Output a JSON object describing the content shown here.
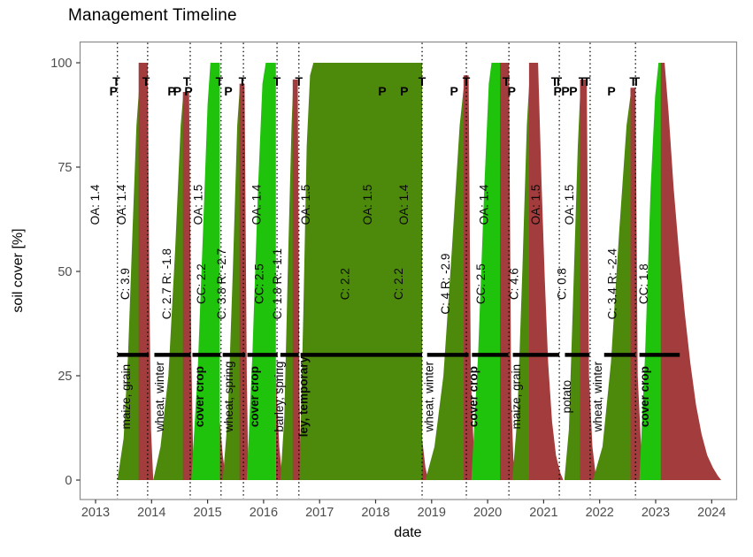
{
  "chart_data": {
    "type": "area",
    "title": "Management Timeline",
    "xlabel": "date",
    "ylabel": "soil cover [%]",
    "x_ticks": [
      2013,
      2014,
      2015,
      2016,
      2017,
      2018,
      2019,
      2020,
      2021,
      2022,
      2023,
      2024
    ],
    "y_ticks": [
      0,
      25,
      50,
      75,
      100
    ],
    "xlim": [
      2012.72,
      2024.45
    ],
    "ylim": [
      0,
      100
    ],
    "grid": "off",
    "legend": "none",
    "colors": {
      "crop": "#4d8a0c",
      "cover": "#1fc30b",
      "residue": "#a33c3c",
      "threshold": "#000000",
      "event_line": "#000000",
      "tick_label": "#4d4d4d",
      "panel_border": "#8c8c8c"
    },
    "threshold": {
      "value": 30
    },
    "threshold_segments": [
      [
        2013.39,
        2013.95
      ],
      [
        2014.05,
        2014.69
      ],
      [
        2014.73,
        2015.23
      ],
      [
        2015.27,
        2015.67
      ],
      [
        2015.71,
        2016.25
      ],
      [
        2016.3,
        2016.62
      ],
      [
        2016.66,
        2018.83
      ],
      [
        2018.92,
        2019.66
      ],
      [
        2019.72,
        2020.37
      ],
      [
        2020.45,
        2021.28
      ],
      [
        2021.38,
        2021.82
      ],
      [
        2022.08,
        2022.64
      ],
      [
        2022.71,
        2023.43
      ]
    ],
    "event_lines_x": [
      2013.39,
      2013.93,
      2014.69,
      2015.24,
      2015.64,
      2016.24,
      2016.63,
      2018.83,
      2019.62,
      2020.38,
      2021.28,
      2021.83,
      2022.64
    ],
    "marker_rows": {
      "T": 94.5,
      "P": 92.2
    },
    "markers": [
      {
        "x": 2013.32,
        "t": "P"
      },
      {
        "x": 2013.37,
        "t": "T"
      },
      {
        "x": 2013.9,
        "t": "T"
      },
      {
        "x": 2014.36,
        "t": "P"
      },
      {
        "x": 2014.46,
        "t": "P"
      },
      {
        "x": 2014.63,
        "t": "T"
      },
      {
        "x": 2014.66,
        "t": "P"
      },
      {
        "x": 2015.21,
        "t": "T"
      },
      {
        "x": 2015.37,
        "t": "P"
      },
      {
        "x": 2015.62,
        "t": "T"
      },
      {
        "x": 2016.24,
        "t": "T"
      },
      {
        "x": 2016.63,
        "t": "T"
      },
      {
        "x": 2018.12,
        "t": "P"
      },
      {
        "x": 2018.51,
        "t": "P"
      },
      {
        "x": 2018.83,
        "t": "T"
      },
      {
        "x": 2019.4,
        "t": "P"
      },
      {
        "x": 2019.62,
        "t": "T"
      },
      {
        "x": 2020.33,
        "t": "T"
      },
      {
        "x": 2020.43,
        "t": "P"
      },
      {
        "x": 2021.2,
        "t": "T"
      },
      {
        "x": 2021.26,
        "t": "T"
      },
      {
        "x": 2021.25,
        "t": "P"
      },
      {
        "x": 2021.39,
        "t": "P"
      },
      {
        "x": 2021.53,
        "t": "P"
      },
      {
        "x": 2021.69,
        "t": "T"
      },
      {
        "x": 2021.77,
        "t": "T"
      },
      {
        "x": 2022.21,
        "t": "P"
      },
      {
        "x": 2022.6,
        "t": "T"
      },
      {
        "x": 2022.65,
        "t": "T"
      }
    ],
    "label_rows": {
      "oa": 66,
      "c": 47,
      "name": 20
    },
    "labels": [
      {
        "x": 2013.06,
        "row": "oa",
        "text": "OA: 1.4"
      },
      {
        "x": 2013.54,
        "row": "oa",
        "text": "OA: 1.4"
      },
      {
        "x": 2013.6,
        "row": "c",
        "text": "C: 3.9"
      },
      {
        "x": 2013.62,
        "row": "name",
        "text": "maize, grain"
      },
      {
        "x": 2014.34,
        "row": "c",
        "text": "C: 2.7 R: -1.8"
      },
      {
        "x": 2014.22,
        "row": "name",
        "text": "wheat, winter"
      },
      {
        "x": 2014.9,
        "row": "oa",
        "text": "OA: 1.5"
      },
      {
        "x": 2014.96,
        "row": "c",
        "text": "CC: 2.2"
      },
      {
        "x": 2014.93,
        "row": "name",
        "text": "cover crop",
        "bold": true
      },
      {
        "x": 2015.32,
        "row": "c",
        "text": "C: 3.8 R: -2.7"
      },
      {
        "x": 2015.45,
        "row": "name",
        "text": "wheat, spring"
      },
      {
        "x": 2015.95,
        "row": "oa",
        "text": "OA: 1.4"
      },
      {
        "x": 2015.99,
        "row": "c",
        "text": "CC: 2.5"
      },
      {
        "x": 2015.91,
        "row": "name",
        "text": "cover crop",
        "bold": true
      },
      {
        "x": 2016.32,
        "row": "c",
        "text": "C: 1.8 R: -1.1"
      },
      {
        "x": 2016.35,
        "row": "name",
        "text": "barley, spring"
      },
      {
        "x": 2016.82,
        "row": "oa",
        "text": "OA: 1.5"
      },
      {
        "x": 2016.78,
        "row": "name",
        "text": "ley, temporary",
        "bold": true
      },
      {
        "x": 2017.53,
        "row": "c",
        "text": "C: 2.2"
      },
      {
        "x": 2017.93,
        "row": "oa",
        "text": "OA: 1.5"
      },
      {
        "x": 2018.48,
        "row": "c",
        "text": "C: 2.2"
      },
      {
        "x": 2018.58,
        "row": "oa",
        "text": "OA: 1.4"
      },
      {
        "x": 2019.32,
        "row": "c",
        "text": "C: 4 R: -2.9"
      },
      {
        "x": 2019.03,
        "row": "name",
        "text": "wheat, winter"
      },
      {
        "x": 2020.01,
        "row": "oa",
        "text": "OA: 1.4"
      },
      {
        "x": 2019.95,
        "row": "c",
        "text": "CC: 2.5"
      },
      {
        "x": 2019.82,
        "row": "name",
        "text": "cover crop",
        "bold": true
      },
      {
        "x": 2020.54,
        "row": "c",
        "text": "C: 4.6"
      },
      {
        "x": 2020.58,
        "row": "name",
        "text": "maize, grain"
      },
      {
        "x": 2020.93,
        "row": "oa",
        "text": "OA: 1.5"
      },
      {
        "x": 2021.4,
        "row": "c",
        "text": "C: 0.8"
      },
      {
        "x": 2021.53,
        "row": "oa",
        "text": "OA: 1.5"
      },
      {
        "x": 2021.48,
        "row": "name",
        "text": "potato"
      },
      {
        "x": 2022.3,
        "row": "c",
        "text": "C: 3.4 R: -2.4"
      },
      {
        "x": 2022.04,
        "row": "name",
        "text": "wheat, winter"
      },
      {
        "x": 2022.86,
        "row": "c",
        "text": "CC: 1.8"
      },
      {
        "x": 2022.87,
        "row": "name",
        "text": "cover crop",
        "bold": true
      }
    ],
    "shapes": [
      {
        "kind": "crop",
        "crop": "maize, grain",
        "points": [
          [
            2013.39,
            0
          ],
          [
            2013.5,
            10
          ],
          [
            2013.58,
            30
          ],
          [
            2013.66,
            60
          ],
          [
            2013.73,
            85
          ],
          [
            2013.8,
            98
          ],
          [
            2013.81,
            0
          ]
        ]
      },
      {
        "kind": "residue",
        "points": [
          [
            2013.77,
            0
          ],
          [
            2013.77,
            100
          ],
          [
            2013.93,
            100
          ],
          [
            2013.96,
            45
          ],
          [
            2013.99,
            12
          ],
          [
            2014.03,
            0
          ]
        ]
      },
      {
        "kind": "crop",
        "crop": "wheat, winter",
        "points": [
          [
            2014.03,
            0
          ],
          [
            2014.16,
            8
          ],
          [
            2014.3,
            25
          ],
          [
            2014.42,
            55
          ],
          [
            2014.52,
            85
          ],
          [
            2014.57,
            93
          ],
          [
            2014.57,
            0
          ]
        ]
      },
      {
        "kind": "residue",
        "points": [
          [
            2014.56,
            0
          ],
          [
            2014.56,
            93
          ],
          [
            2014.67,
            93
          ],
          [
            2014.71,
            30
          ],
          [
            2014.75,
            0
          ]
        ]
      },
      {
        "kind": "cover",
        "crop": "cover crop",
        "points": [
          [
            2014.71,
            0
          ],
          [
            2014.82,
            25
          ],
          [
            2014.92,
            60
          ],
          [
            2015.0,
            90
          ],
          [
            2015.05,
            100
          ],
          [
            2015.22,
            100
          ],
          [
            2015.22,
            0
          ]
        ]
      },
      {
        "kind": "residue",
        "points": [
          [
            2015.22,
            0
          ],
          [
            2015.22,
            14
          ],
          [
            2015.27,
            6
          ],
          [
            2015.33,
            0
          ]
        ]
      },
      {
        "kind": "crop",
        "crop": "wheat, spring",
        "points": [
          [
            2015.27,
            0
          ],
          [
            2015.36,
            15
          ],
          [
            2015.45,
            50
          ],
          [
            2015.53,
            85
          ],
          [
            2015.58,
            95
          ],
          [
            2015.58,
            0
          ]
        ]
      },
      {
        "kind": "residue",
        "points": [
          [
            2015.57,
            0
          ],
          [
            2015.57,
            95
          ],
          [
            2015.66,
            95
          ],
          [
            2015.7,
            25
          ],
          [
            2015.73,
            0
          ]
        ]
      },
      {
        "kind": "cover",
        "crop": "cover crop",
        "points": [
          [
            2015.7,
            0
          ],
          [
            2015.8,
            30
          ],
          [
            2015.9,
            70
          ],
          [
            2015.98,
            95
          ],
          [
            2016.04,
            100
          ],
          [
            2016.22,
            100
          ],
          [
            2016.22,
            0
          ]
        ]
      },
      {
        "kind": "residue",
        "points": [
          [
            2016.22,
            0
          ],
          [
            2016.22,
            25
          ],
          [
            2016.28,
            8
          ],
          [
            2016.34,
            0
          ]
        ]
      },
      {
        "kind": "crop",
        "crop": "barley, spring",
        "points": [
          [
            2016.3,
            0
          ],
          [
            2016.37,
            15
          ],
          [
            2016.44,
            55
          ],
          [
            2016.5,
            85
          ],
          [
            2016.53,
            95
          ],
          [
            2016.53,
            0
          ]
        ]
      },
      {
        "kind": "residue",
        "points": [
          [
            2016.52,
            0
          ],
          [
            2016.52,
            96
          ],
          [
            2016.61,
            96
          ],
          [
            2016.64,
            20
          ],
          [
            2016.67,
            0
          ]
        ]
      },
      {
        "kind": "crop",
        "crop": "ley, temporary",
        "points": [
          [
            2016.64,
            0
          ],
          [
            2016.71,
            40
          ],
          [
            2016.77,
            80
          ],
          [
            2016.83,
            97
          ],
          [
            2016.89,
            100
          ],
          [
            2018.83,
            100
          ],
          [
            2018.83,
            0
          ]
        ]
      },
      {
        "kind": "residue",
        "points": [
          [
            2018.83,
            0
          ],
          [
            2018.83,
            10
          ],
          [
            2018.89,
            3
          ],
          [
            2018.94,
            0
          ]
        ]
      },
      {
        "kind": "crop",
        "crop": "wheat, winter",
        "points": [
          [
            2018.89,
            0
          ],
          [
            2019.05,
            8
          ],
          [
            2019.21,
            25
          ],
          [
            2019.36,
            55
          ],
          [
            2019.5,
            85
          ],
          [
            2019.58,
            95
          ],
          [
            2019.58,
            0
          ]
        ]
      },
      {
        "kind": "residue",
        "points": [
          [
            2019.57,
            0
          ],
          [
            2019.57,
            97
          ],
          [
            2019.66,
            97
          ],
          [
            2019.7,
            25
          ],
          [
            2019.75,
            8
          ],
          [
            2019.81,
            0
          ]
        ]
      },
      {
        "kind": "cover",
        "crop": "cover crop",
        "points": [
          [
            2019.71,
            0
          ],
          [
            2019.83,
            30
          ],
          [
            2019.94,
            70
          ],
          [
            2020.02,
            95
          ],
          [
            2020.07,
            100
          ],
          [
            2020.23,
            100
          ],
          [
            2020.23,
            0
          ]
        ]
      },
      {
        "kind": "residue",
        "points": [
          [
            2020.22,
            0
          ],
          [
            2020.22,
            100
          ],
          [
            2020.38,
            100
          ],
          [
            2020.42,
            20
          ],
          [
            2020.46,
            5
          ],
          [
            2020.51,
            0
          ]
        ]
      },
      {
        "kind": "crop",
        "crop": "maize, grain",
        "points": [
          [
            2020.44,
            0
          ],
          [
            2020.53,
            15
          ],
          [
            2020.62,
            50
          ],
          [
            2020.7,
            85
          ],
          [
            2020.75,
            97
          ],
          [
            2020.75,
            0
          ]
        ]
      },
      {
        "kind": "residue",
        "points": [
          [
            2020.74,
            0
          ],
          [
            2020.74,
            100
          ],
          [
            2020.9,
            100
          ],
          [
            2020.96,
            72
          ],
          [
            2021.02,
            48
          ],
          [
            2021.08,
            28
          ],
          [
            2021.15,
            14
          ],
          [
            2021.22,
            6
          ],
          [
            2021.29,
            2
          ],
          [
            2021.35,
            0
          ]
        ]
      },
      {
        "kind": "crop",
        "crop": "potato",
        "points": [
          [
            2021.37,
            0
          ],
          [
            2021.45,
            12
          ],
          [
            2021.53,
            45
          ],
          [
            2021.61,
            80
          ],
          [
            2021.66,
            95
          ],
          [
            2021.66,
            0
          ]
        ]
      },
      {
        "kind": "residue",
        "points": [
          [
            2021.65,
            0
          ],
          [
            2021.65,
            96
          ],
          [
            2021.77,
            96
          ],
          [
            2021.81,
            25
          ],
          [
            2021.87,
            8
          ],
          [
            2021.94,
            0
          ]
        ]
      },
      {
        "kind": "crop",
        "crop": "wheat, winter",
        "points": [
          [
            2021.88,
            0
          ],
          [
            2022.05,
            8
          ],
          [
            2022.2,
            28
          ],
          [
            2022.35,
            60
          ],
          [
            2022.48,
            85
          ],
          [
            2022.56,
            93
          ],
          [
            2022.56,
            0
          ]
        ]
      },
      {
        "kind": "residue",
        "points": [
          [
            2022.55,
            0
          ],
          [
            2022.55,
            94
          ],
          [
            2022.64,
            94
          ],
          [
            2022.68,
            25
          ],
          [
            2022.74,
            8
          ],
          [
            2022.8,
            0
          ]
        ]
      },
      {
        "kind": "cover",
        "crop": "cover crop",
        "points": [
          [
            2022.71,
            0
          ],
          [
            2022.81,
            30
          ],
          [
            2022.91,
            70
          ],
          [
            2022.99,
            92
          ],
          [
            2023.05,
            100
          ],
          [
            2023.1,
            100
          ],
          [
            2023.1,
            0
          ]
        ]
      },
      {
        "kind": "residue",
        "points": [
          [
            2023.09,
            0
          ],
          [
            2023.09,
            100
          ],
          [
            2023.16,
            100
          ],
          [
            2023.23,
            88
          ],
          [
            2023.32,
            70
          ],
          [
            2023.42,
            54
          ],
          [
            2023.52,
            40
          ],
          [
            2023.62,
            28
          ],
          [
            2023.72,
            18
          ],
          [
            2023.82,
            11
          ],
          [
            2023.92,
            6
          ],
          [
            2024.02,
            3
          ],
          [
            2024.11,
            1
          ],
          [
            2024.17,
            0
          ]
        ]
      }
    ]
  }
}
